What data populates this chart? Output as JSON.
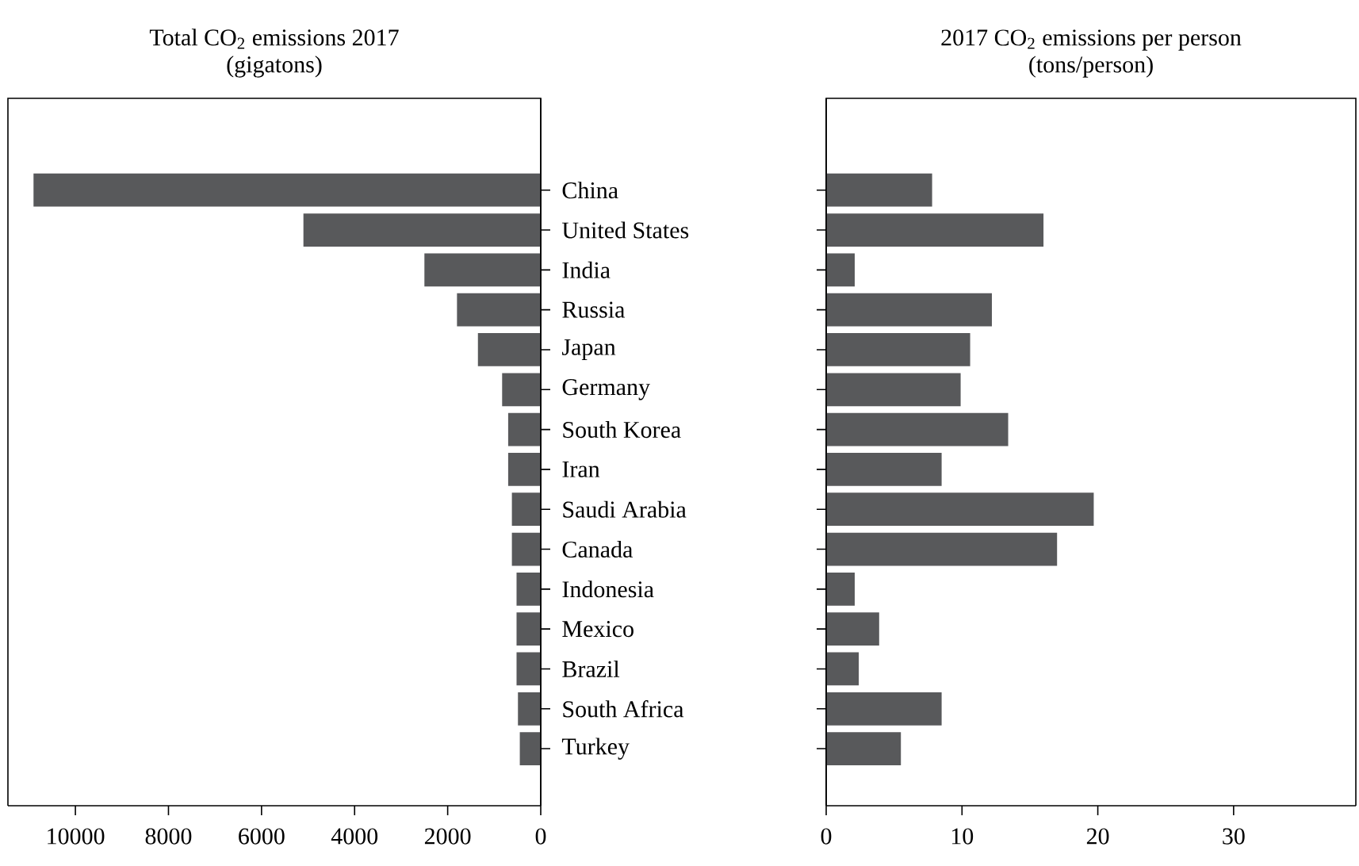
{
  "chart_data": [
    {
      "type": "bar",
      "orientation": "horizontal",
      "title": "Total CO$_{2}$ emissions 2017",
      "subtitle": "(gigatons)",
      "categories": [
        "China",
        "United States",
        "India",
        "Russia",
        "Japan",
        "Germany",
        "South Korea",
        "Iran",
        "Saudi Arabia",
        "Canada",
        "Indonesia",
        "Mexico",
        "Brazil",
        "South Africa",
        "Turkey"
      ],
      "values": [
        10900,
        5100,
        2500,
        1800,
        1350,
        830,
        700,
        700,
        620,
        620,
        520,
        520,
        520,
        490,
        450
      ],
      "color": "#58595b",
      "xlim": [
        11450,
        0
      ],
      "xticks": [
        10000,
        8000,
        6000,
        4000,
        2000,
        0
      ]
    },
    {
      "type": "bar",
      "orientation": "horizontal",
      "title": "2017 CO$_{2}$ emissions per person",
      "subtitle": "(tons/person)",
      "categories": [
        null,
        null,
        null,
        null,
        null,
        null,
        null,
        null,
        null,
        null,
        null,
        null,
        null,
        null,
        null
      ],
      "values": [
        7.8,
        16.0,
        2.1,
        12.2,
        10.6,
        9.9,
        13.4,
        8.5,
        19.7,
        17.0,
        2.1,
        3.9,
        2.4,
        8.5,
        5.5
      ],
      "color": "#58595b",
      "xlim": [
        0,
        39
      ],
      "xticks": [
        0,
        10,
        20,
        30
      ]
    }
  ]
}
